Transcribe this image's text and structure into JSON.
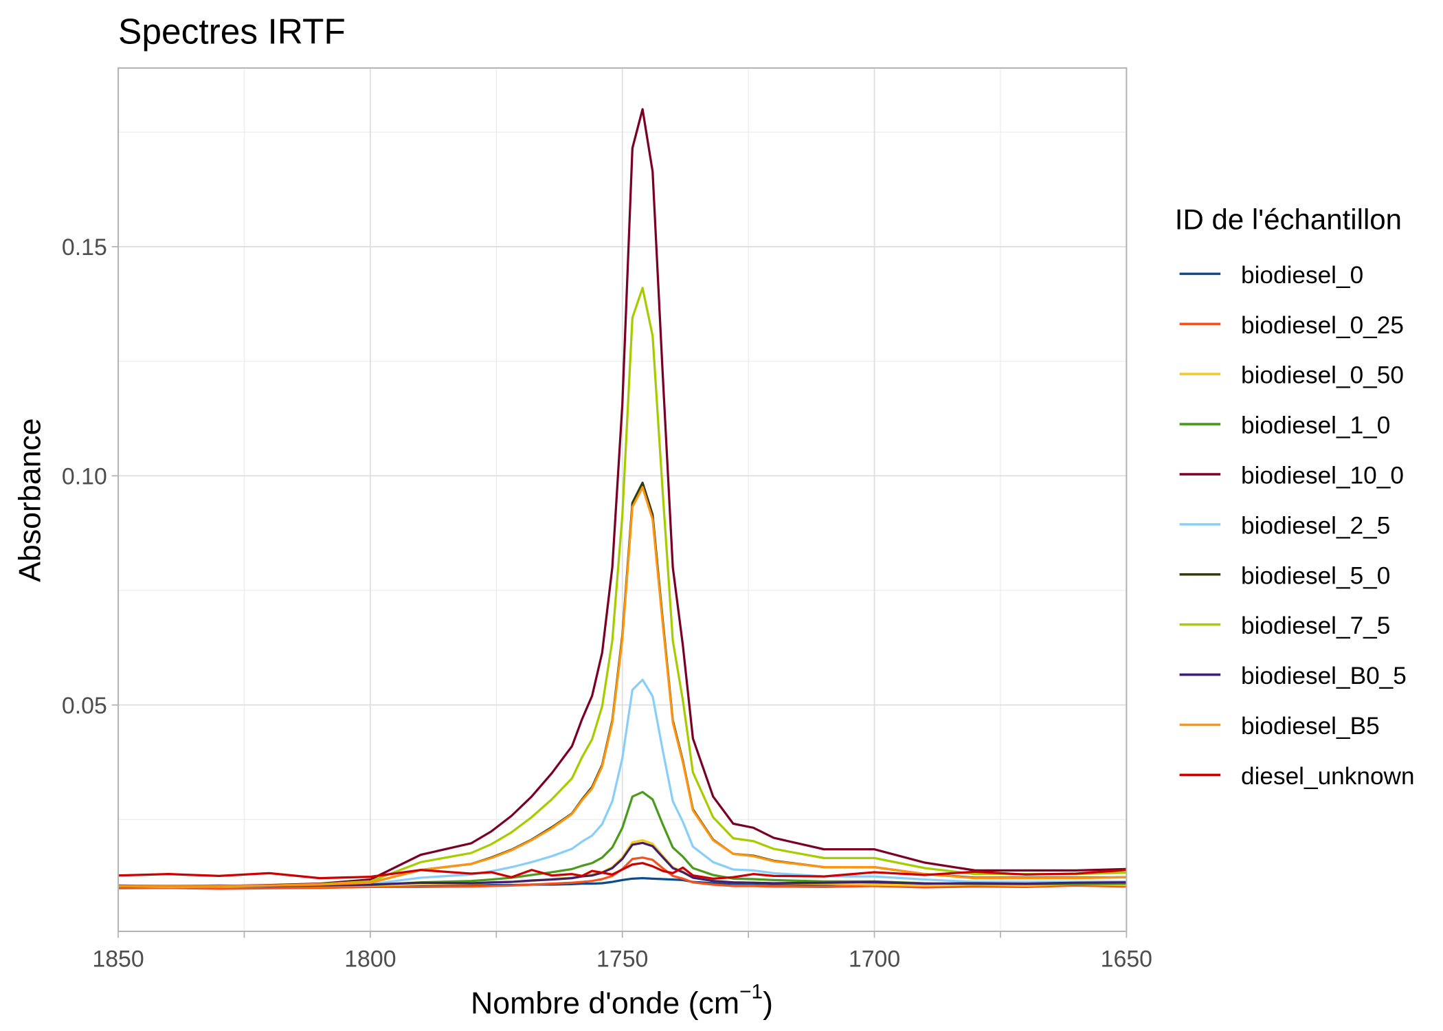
{
  "chart_data": {
    "type": "line",
    "title": "Spectres IRTF",
    "xlabel": "Nombre d'onde (cm",
    "xlabel_sup": "−1",
    "xlabel_close": ")",
    "ylabel": "Absorbance",
    "xlim": [
      1850,
      1650
    ],
    "x_reversed": true,
    "ylim": [
      0.0006,
      0.189
    ],
    "x_ticks": [
      "1850",
      "1800",
      "1750",
      "1700",
      "1650"
    ],
    "x_tick_values": [
      1850,
      1800,
      1750,
      1700,
      1650
    ],
    "y_ticks": [
      "0.05",
      "0.10",
      "0.15"
    ],
    "y_tick_values": [
      0.05,
      0.1,
      0.15
    ],
    "grid": true,
    "legend_title": "ID de l'échantillon",
    "legend_position": "right",
    "x": [
      1850,
      1840,
      1830,
      1820,
      1810,
      1800,
      1790,
      1780,
      1776,
      1772,
      1768,
      1764,
      1760,
      1758,
      1756,
      1754,
      1752,
      1750,
      1748,
      1746,
      1744,
      1742,
      1740,
      1738,
      1736,
      1732,
      1728,
      1724,
      1720,
      1710,
      1700,
      1690,
      1680,
      1670,
      1660,
      1650
    ],
    "series": [
      {
        "name": "biodiesel_0",
        "color": "#0b4c8c",
        "values": [
          0.0105,
          0.0104,
          0.0105,
          0.0104,
          0.0105,
          0.0105,
          0.0106,
          0.0106,
          0.0107,
          0.0107,
          0.0108,
          0.0108,
          0.0109,
          0.011,
          0.011,
          0.0111,
          0.0114,
          0.0118,
          0.0121,
          0.0122,
          0.0121,
          0.012,
          0.0119,
          0.0118,
          0.0114,
          0.0111,
          0.011,
          0.011,
          0.0109,
          0.0108,
          0.011,
          0.0109,
          0.0108,
          0.0109,
          0.011,
          0.0112
        ]
      },
      {
        "name": "biodiesel_0_25",
        "color": "#f4511e",
        "values": [
          0.01,
          0.0101,
          0.0099,
          0.01,
          0.0101,
          0.0103,
          0.0103,
          0.0104,
          0.0105,
          0.0106,
          0.0108,
          0.011,
          0.0112,
          0.0114,
          0.0116,
          0.012,
          0.0127,
          0.0142,
          0.0164,
          0.0167,
          0.0162,
          0.0144,
          0.0127,
          0.0121,
          0.0113,
          0.0108,
          0.0105,
          0.0105,
          0.0104,
          0.0103,
          0.0105,
          0.0102,
          0.0104,
          0.0103,
          0.0106,
          0.0104
        ]
      },
      {
        "name": "biodiesel_0_50",
        "color": "#f7c81e",
        "values": [
          0.0105,
          0.0103,
          0.0104,
          0.0105,
          0.0105,
          0.0106,
          0.0109,
          0.011,
          0.0112,
          0.0114,
          0.0116,
          0.012,
          0.0123,
          0.0127,
          0.013,
          0.0135,
          0.0146,
          0.0167,
          0.02,
          0.0205,
          0.0197,
          0.0171,
          0.0146,
          0.0136,
          0.0124,
          0.0116,
          0.0113,
          0.0112,
          0.0111,
          0.011,
          0.0108,
          0.0106,
          0.0108,
          0.0106,
          0.0109,
          0.0107
        ]
      },
      {
        "name": "biodiesel_1_0",
        "color": "#4a9a1c",
        "values": [
          0.0105,
          0.0105,
          0.0105,
          0.0105,
          0.0106,
          0.0107,
          0.0113,
          0.0116,
          0.0119,
          0.0123,
          0.0129,
          0.0135,
          0.0142,
          0.0149,
          0.0155,
          0.0167,
          0.0189,
          0.0232,
          0.03,
          0.031,
          0.0294,
          0.024,
          0.0189,
          0.0169,
          0.0144,
          0.0129,
          0.0121,
          0.012,
          0.0118,
          0.0115,
          0.0115,
          0.0111,
          0.0109,
          0.0109,
          0.0109,
          0.011
        ]
      },
      {
        "name": "biodiesel_10_0",
        "color": "#7b0025",
        "values": [
          0.0105,
          0.0105,
          0.0105,
          0.0107,
          0.011,
          0.0119,
          0.0173,
          0.0198,
          0.0224,
          0.0258,
          0.03,
          0.0351,
          0.041,
          0.0469,
          0.052,
          0.0614,
          0.08,
          0.1156,
          0.1715,
          0.18,
          0.1664,
          0.1224,
          0.08,
          0.063,
          0.0427,
          0.03,
          0.0241,
          0.0232,
          0.021,
          0.0185,
          0.0185,
          0.0156,
          0.0139,
          0.0139,
          0.0139,
          0.0142
        ]
      },
      {
        "name": "biodiesel_2_5",
        "color": "#87cefa",
        "values": [
          0.0105,
          0.0105,
          0.0105,
          0.0105,
          0.0106,
          0.0109,
          0.0123,
          0.013,
          0.0137,
          0.0146,
          0.0157,
          0.017,
          0.0186,
          0.0202,
          0.0215,
          0.024,
          0.029,
          0.0384,
          0.0533,
          0.0555,
          0.0519,
          0.0402,
          0.029,
          0.0245,
          0.0191,
          0.0157,
          0.0141,
          0.0139,
          0.0133,
          0.0126,
          0.0126,
          0.0119,
          0.0114,
          0.0114,
          0.0114,
          0.0115
        ]
      },
      {
        "name": "biodiesel_5_0",
        "color": "#2e3d0b",
        "values": [
          0.0105,
          0.0105,
          0.0105,
          0.0106,
          0.0108,
          0.0112,
          0.014,
          0.0153,
          0.0167,
          0.0184,
          0.0206,
          0.0233,
          0.0263,
          0.0294,
          0.0321,
          0.0369,
          0.0466,
          0.0651,
          0.0941,
          0.0985,
          0.0915,
          0.0686,
          0.0466,
          0.0378,
          0.0272,
          0.0206,
          0.0175,
          0.0171,
          0.016,
          0.0146,
          0.0146,
          0.0131,
          0.0123,
          0.0123,
          0.0123,
          0.0124
        ]
      },
      {
        "name": "biodiesel_7_5",
        "color": "#a6cc00",
        "values": [
          0.0105,
          0.0105,
          0.0105,
          0.0106,
          0.0109,
          0.0115,
          0.0157,
          0.0177,
          0.0196,
          0.0222,
          0.0255,
          0.0294,
          0.034,
          0.0386,
          0.0425,
          0.0497,
          0.064,
          0.0914,
          0.1345,
          0.141,
          0.1306,
          0.0966,
          0.064,
          0.051,
          0.0353,
          0.0255,
          0.0209,
          0.0203,
          0.0186,
          0.0166,
          0.0166,
          0.0144,
          0.0131,
          0.0131,
          0.0131,
          0.0134
        ]
      },
      {
        "name": "biodiesel_B0_5",
        "color": "#3f1f6e",
        "values": [
          0.0106,
          0.0105,
          0.0106,
          0.0105,
          0.0106,
          0.0108,
          0.0112,
          0.0111,
          0.0113,
          0.0114,
          0.0117,
          0.0119,
          0.0122,
          0.0126,
          0.0128,
          0.0134,
          0.0144,
          0.0164,
          0.0195,
          0.0199,
          0.0192,
          0.0168,
          0.0144,
          0.0135,
          0.0123,
          0.0116,
          0.0113,
          0.0112,
          0.0111,
          0.0112,
          0.0114,
          0.011,
          0.0111,
          0.011,
          0.0112,
          0.0113
        ]
      },
      {
        "name": "biodiesel_B5",
        "color": "#ff9410",
        "values": [
          0.0105,
          0.0105,
          0.0105,
          0.0106,
          0.0108,
          0.0112,
          0.014,
          0.0153,
          0.0166,
          0.0183,
          0.0205,
          0.0231,
          0.0262,
          0.0292,
          0.0318,
          0.0366,
          0.0462,
          0.0644,
          0.0932,
          0.0975,
          0.0905,
          0.0679,
          0.0462,
          0.0375,
          0.027,
          0.0205,
          0.0175,
          0.017,
          0.0159,
          0.0146,
          0.0146,
          0.0131,
          0.0122,
          0.0122,
          0.0122,
          0.0124
        ]
      },
      {
        "name": "diesel_unknown",
        "color": "#cc0000",
        "values": [
          0.0128,
          0.0131,
          0.0127,
          0.0133,
          0.0122,
          0.0125,
          0.014,
          0.0132,
          0.0135,
          0.0124,
          0.014,
          0.0128,
          0.0131,
          0.0127,
          0.0138,
          0.0134,
          0.013,
          0.0141,
          0.0152,
          0.0155,
          0.0148,
          0.0138,
          0.0133,
          0.0145,
          0.0128,
          0.0121,
          0.0124,
          0.0131,
          0.0127,
          0.0126,
          0.0135,
          0.0129,
          0.0136,
          0.013,
          0.0132,
          0.014
        ]
      }
    ]
  }
}
